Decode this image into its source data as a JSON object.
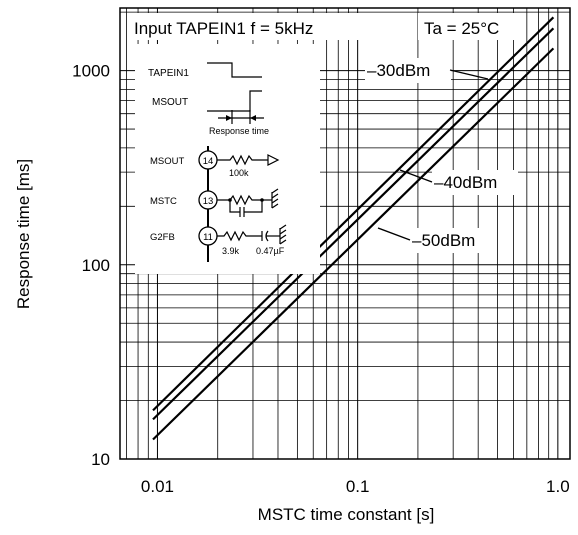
{
  "chart_data": {
    "type": "line",
    "title": "Input TAPEIN1 f = 5kHz",
    "condition": "Ta = 25°C",
    "xlabel": "MSTC time constant [s]",
    "ylabel": "Response time [ms]",
    "xscale": "log",
    "yscale": "log",
    "xlim": [
      0.0065,
      1.15
    ],
    "ylim": [
      10,
      2100
    ],
    "xticks": [
      0.01,
      0.1,
      1.0
    ],
    "xtick_labels": [
      "0.01",
      "0.1",
      "1.0"
    ],
    "yticks": [
      10,
      100,
      1000
    ],
    "ytick_labels": [
      "10",
      "100",
      "1000"
    ],
    "grid": true,
    "series": [
      {
        "name": "–30dBm",
        "x": [
          0.0095,
          0.95
        ],
        "y": [
          17.8,
          1880
        ]
      },
      {
        "name": "–40dBm",
        "x": [
          0.0095,
          0.95
        ],
        "y": [
          16.0,
          1650
        ]
      },
      {
        "name": "–50dBm",
        "x": [
          0.0095,
          0.95
        ],
        "y": [
          12.6,
          1300
        ]
      }
    ]
  },
  "inset": {
    "signals": [
      "TAPEIN1",
      "MSOUT"
    ],
    "timing_label": "Response time",
    "pins": [
      {
        "name": "MSOUT",
        "number": "14",
        "component": "100k"
      },
      {
        "name": "MSTC",
        "number": "13"
      },
      {
        "name": "G2FB",
        "number": "11",
        "component_r": "3.9k",
        "component_c": "0.47µF"
      }
    ]
  }
}
